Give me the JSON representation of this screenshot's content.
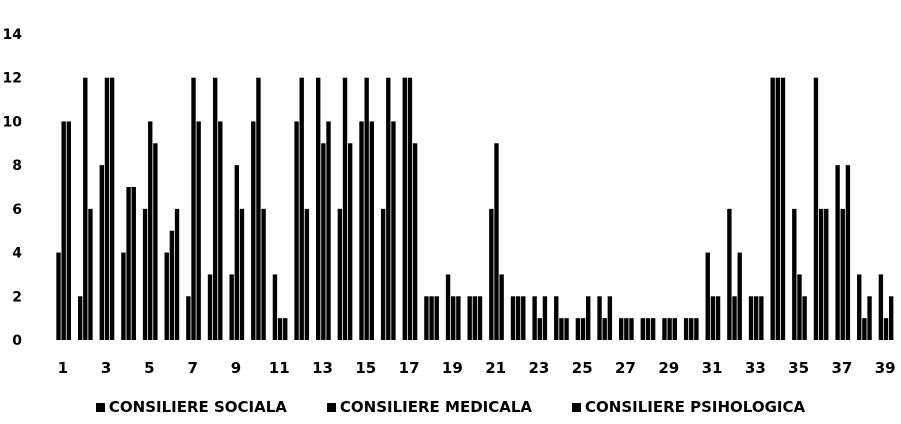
{
  "chart_data": {
    "type": "bar",
    "title": "",
    "xlabel": "",
    "ylabel": "",
    "ylim": [
      0,
      14
    ],
    "yticks": [
      "0",
      "2",
      "4",
      "6",
      "8",
      "10",
      "12",
      "14"
    ],
    "categories": [
      "1",
      "2",
      "3",
      "4",
      "5",
      "6",
      "7",
      "8",
      "9",
      "10",
      "11",
      "12",
      "13",
      "14",
      "15",
      "16",
      "17",
      "18",
      "19",
      "20",
      "21",
      "22",
      "23",
      "24",
      "25",
      "26",
      "27",
      "28",
      "29",
      "30",
      "31",
      "32",
      "33",
      "34",
      "35",
      "36",
      "37",
      "38",
      "39"
    ],
    "xtick_labels": [
      "1",
      "3",
      "5",
      "7",
      "9",
      "11",
      "13",
      "15",
      "17",
      "19",
      "21",
      "23",
      "25",
      "27",
      "29",
      "31",
      "33",
      "35",
      "37",
      "39"
    ],
    "legend_position": "bottom",
    "bar_color": "#000000",
    "series": [
      {
        "name": "CONSILIERE SOCIALA",
        "values": [
          4,
          2,
          8,
          4,
          6,
          4,
          2,
          3,
          3,
          10,
          3,
          10,
          12,
          6,
          10,
          6,
          12,
          2,
          3,
          2,
          6,
          2,
          2,
          2,
          1,
          2,
          1,
          1,
          1,
          1,
          4,
          6,
          2,
          12,
          6,
          12,
          8,
          3,
          3
        ]
      },
      {
        "name": "CONSILIERE MEDICALA",
        "values": [
          10,
          12,
          12,
          7,
          10,
          5,
          12,
          12,
          8,
          12,
          1,
          12,
          9,
          12,
          12,
          12,
          12,
          2,
          2,
          2,
          9,
          2,
          1,
          1,
          1,
          1,
          1,
          1,
          1,
          1,
          2,
          2,
          2,
          12,
          3,
          6,
          6,
          1,
          1
        ]
      },
      {
        "name": "CONSILIERE PSIHOLOGICA",
        "values": [
          10,
          6,
          12,
          7,
          9,
          6,
          10,
          10,
          6,
          6,
          1,
          6,
          10,
          9,
          10,
          10,
          9,
          2,
          2,
          2,
          3,
          2,
          2,
          1,
          2,
          2,
          1,
          1,
          1,
          1,
          2,
          4,
          2,
          12,
          2,
          6,
          8,
          2,
          2
        ]
      }
    ]
  }
}
